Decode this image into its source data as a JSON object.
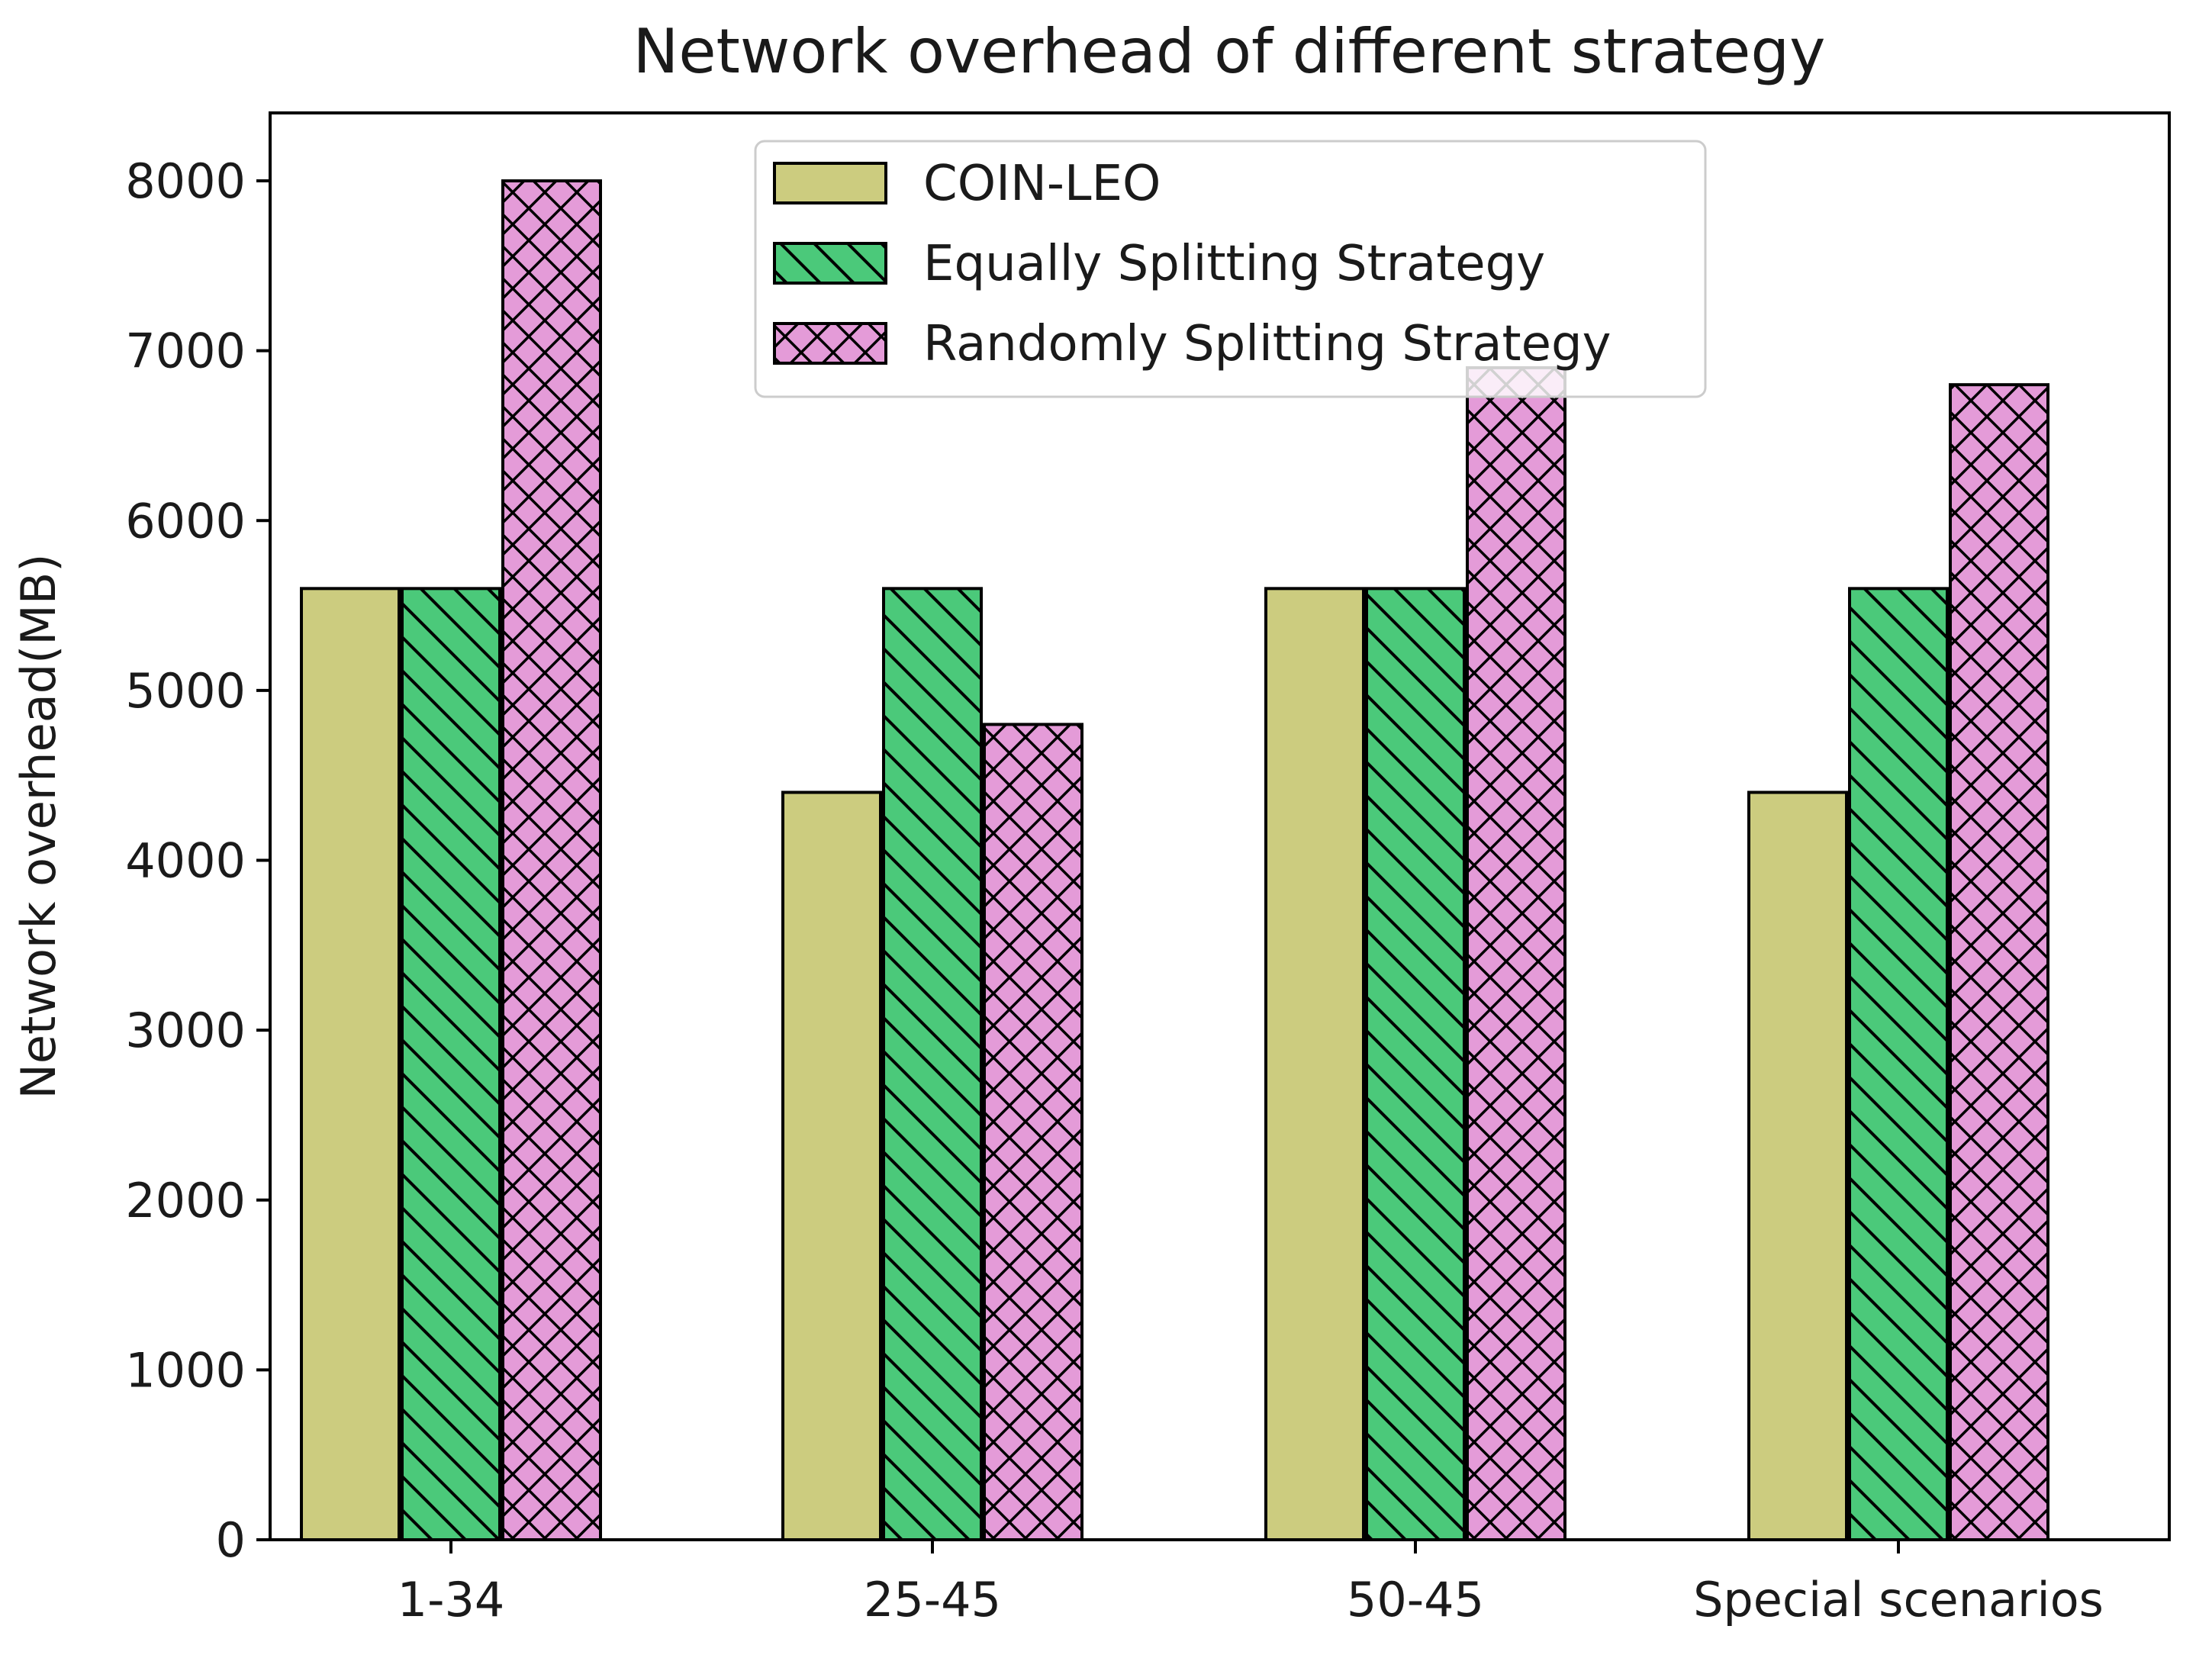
{
  "chart_data": {
    "type": "bar",
    "title": "Network overhead of different strategy",
    "xlabel": "",
    "ylabel": "Network overhead(MB)",
    "categories": [
      "1-34",
      "25-45",
      "50-45",
      "Special scenarios"
    ],
    "series": [
      {
        "name": "COIN-LEO",
        "values": [
          5600,
          4400,
          5600,
          4400
        ],
        "color": "#cccc7f",
        "hatch": "none"
      },
      {
        "name": "Equally Splitting Strategy",
        "values": [
          5600,
          5600,
          5600,
          5600
        ],
        "color": "#4bc97a",
        "hatch": "diagonal"
      },
      {
        "name": "Randomly Splitting Strategy",
        "values": [
          8000,
          4800,
          6900,
          6800
        ],
        "color": "#e49bd8",
        "hatch": "crosshatch"
      }
    ],
    "ylim": [
      0,
      8400
    ],
    "yticks": [
      0,
      1000,
      2000,
      3000,
      4000,
      5000,
      6000,
      7000,
      8000
    ],
    "grid": false,
    "legend_position": "top-center"
  }
}
